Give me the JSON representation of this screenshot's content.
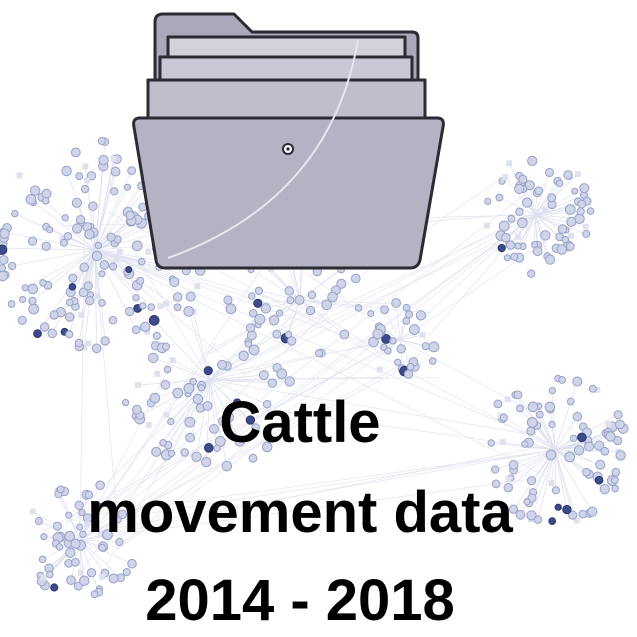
{
  "caption": {
    "lines": [
      "Cattle",
      "movement data",
      "2014 - 2018"
    ]
  }
}
